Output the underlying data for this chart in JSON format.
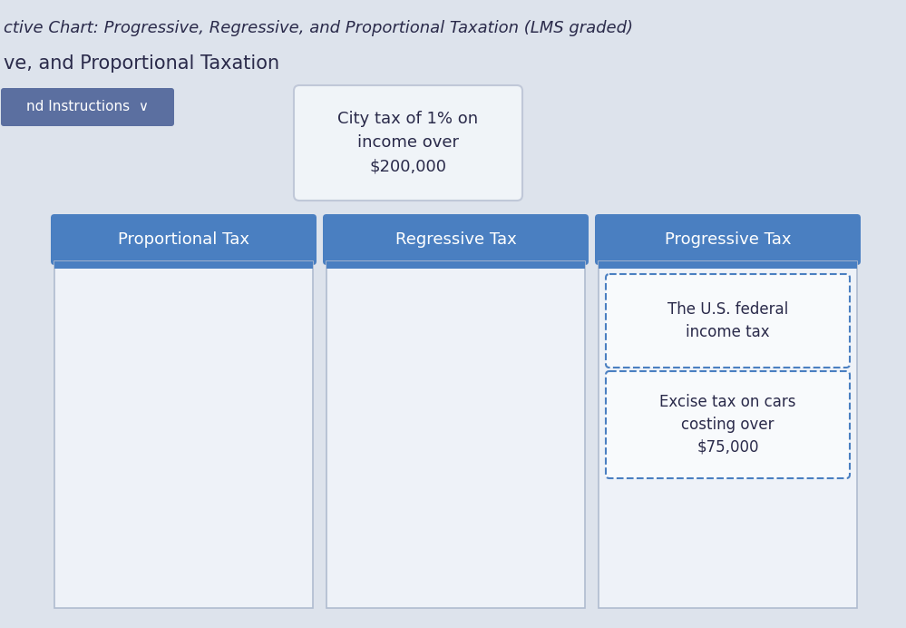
{
  "title_top": "ctive Chart: Progressive, Regressive, and Proportional Taxation (LMS graded)",
  "subtitle": "ve, and Proportional Taxation",
  "button_text": "nd Instructions  ∨",
  "button_bg": "#5b6fa0",
  "button_text_color": "#ffffff",
  "background_color": "#dde3ec",
  "city_tax_text": "City tax of 1% on\nincome over\n$200,000",
  "city_tax_bg": "#f0f4f8",
  "city_tax_border": "#c0c8d8",
  "columns": [
    {
      "header": "Proportional Tax",
      "header_bg": "#4a7fc1",
      "header_text_color": "#ffffff",
      "body_bg": "#eef2f8",
      "body_border": "#b0bcd0",
      "items": []
    },
    {
      "header": "Regressive Tax",
      "header_bg": "#4a7fc1",
      "header_text_color": "#ffffff",
      "body_bg": "#eef2f8",
      "body_border": "#b0bcd0",
      "items": []
    },
    {
      "header": "Progressive Tax",
      "header_bg": "#4a7fc1",
      "header_text_color": "#ffffff",
      "body_bg": "#eef2f8",
      "body_border": "#b0bcd0",
      "items": [
        "The U.S. federal\nincome tax",
        "Excise tax on cars\ncosting over\n$75,000"
      ],
      "item_bg": "#f8fafc",
      "item_border_color": "#4a7fc1",
      "item_border_style": "dashed"
    }
  ],
  "title_fontsize": 13,
  "subtitle_fontsize": 15,
  "col_header_fontsize": 13,
  "item_fontsize": 12,
  "city_tax_fontsize": 13
}
